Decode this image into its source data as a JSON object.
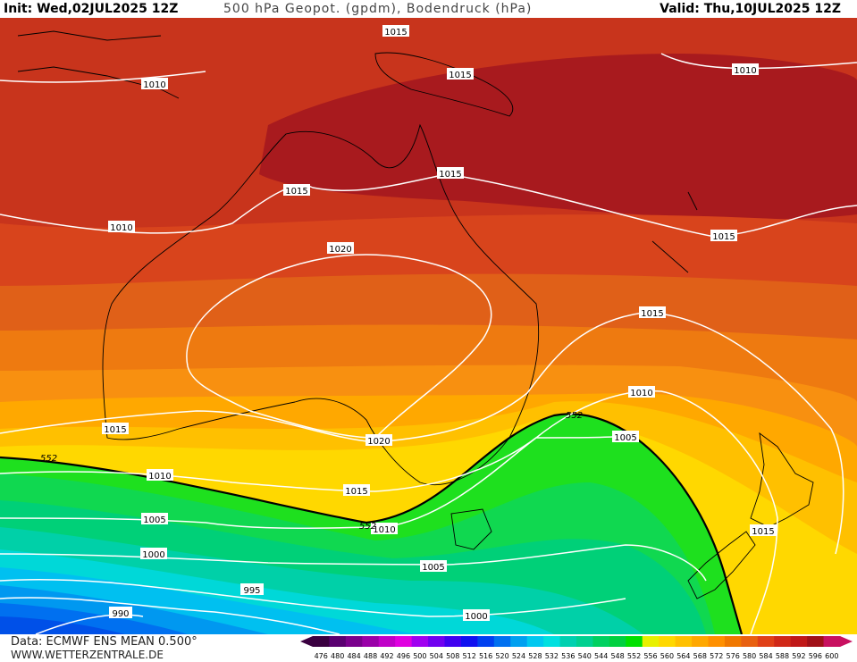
{
  "header": {
    "init": "Init: Wed,02JUL2025 12Z",
    "title": "500 hPa Geopot. (gpdm), Bodendruck (hPa)",
    "valid": "Valid: Thu,10JUL2025 12Z"
  },
  "footer": {
    "data": "Data: ECMWF ENS MEAN 0.500°",
    "source": "WWW.WETTERZENTRALE.DE"
  },
  "scale": {
    "values": [
      "476",
      "480",
      "484",
      "488",
      "492",
      "496",
      "500",
      "504",
      "508",
      "512",
      "516",
      "520",
      "524",
      "528",
      "532",
      "536",
      "540",
      "544",
      "548",
      "552",
      "556",
      "560",
      "564",
      "568",
      "572",
      "576",
      "580",
      "584",
      "588",
      "592",
      "596",
      "600"
    ],
    "colors": [
      "#3a0040",
      "#5a0070",
      "#7a008c",
      "#9a00a8",
      "#c000c8",
      "#e000e0",
      "#a000f0",
      "#7000f0",
      "#4000f0",
      "#1010f0",
      "#0040f0",
      "#0070f0",
      "#00a0f0",
      "#00c8f0",
      "#00e0e0",
      "#00d0b0",
      "#00d090",
      "#00d060",
      "#00d040",
      "#00e000",
      "#e8f000",
      "#ffd800",
      "#ffc000",
      "#ffa800",
      "#ff9000",
      "#f07800",
      "#e86010",
      "#e04018",
      "#d02818",
      "#c01818",
      "#a01018",
      "#c81060"
    ]
  },
  "isobar_labels": [
    "1015",
    "1015",
    "1010",
    "1010",
    "1015",
    "1015",
    "1010",
    "1015",
    "1020",
    "1015",
    "1015",
    "1010",
    "1010",
    "1015",
    "1020",
    "1010",
    "1005",
    "1015",
    "1005",
    "1010",
    "1000",
    "1005",
    "1010",
    "995",
    "990",
    "1000"
  ],
  "contour_552_labels": [
    "552",
    "552",
    "552"
  ],
  "colors": {
    "contour": "#000000",
    "isobar": "#ffffff",
    "coast": "#000000"
  }
}
